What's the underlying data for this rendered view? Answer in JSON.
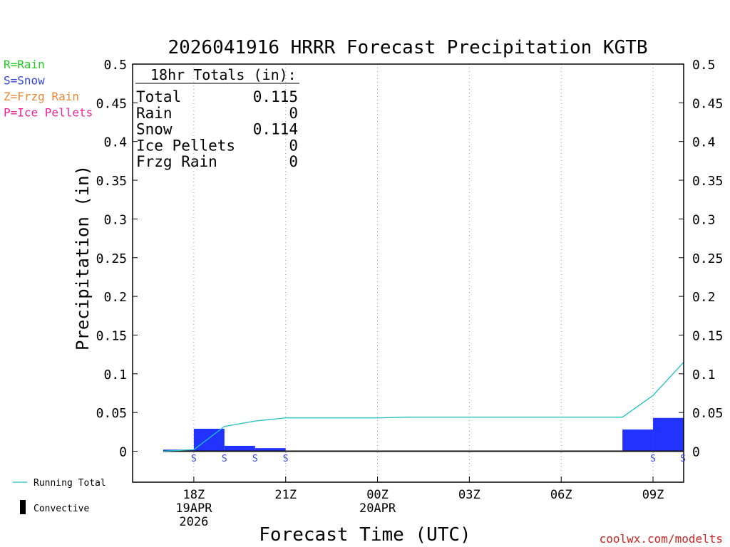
{
  "chart_data": {
    "type": "bar",
    "title": "2026041916 HRRR Forecast Precipitation KGTB",
    "xlabel": "Forecast Time (UTC)",
    "ylabel": "Precipitation (in)",
    "ylim": [
      -0.04,
      0.5
    ],
    "yticks": [
      "0",
      "0.05",
      "0.1",
      "0.15",
      "0.2",
      "0.25",
      "0.3",
      "0.35",
      "0.4",
      "0.45",
      "0.5"
    ],
    "ytick_values": [
      0,
      0.05,
      0.1,
      0.15,
      0.2,
      0.25,
      0.3,
      0.35,
      0.4,
      0.45,
      0.5
    ],
    "xlim_hours": [
      16,
      34
    ],
    "xticks": [
      {
        "hour": 18,
        "lines": [
          "18Z",
          "19APR",
          "2026"
        ]
      },
      {
        "hour": 21,
        "lines": [
          "21Z"
        ]
      },
      {
        "hour": 24,
        "lines": [
          "00Z",
          "20APR"
        ]
      },
      {
        "hour": 27,
        "lines": [
          "03Z"
        ]
      },
      {
        "hour": 30,
        "lines": [
          "06Z"
        ]
      },
      {
        "hour": 33,
        "lines": [
          "09Z"
        ]
      }
    ],
    "grid": "vertical dotted at x ticks",
    "series": [
      {
        "name": "Snow",
        "kind": "bar",
        "color": "#2233ff",
        "hours": [
          17,
          18,
          19,
          20,
          21,
          22,
          23,
          24,
          25,
          26,
          27,
          28,
          29,
          30,
          31,
          32,
          33,
          34
        ],
        "values": [
          0.0,
          0.002,
          0.029,
          0.007,
          0.004,
          0.0,
          0.0,
          0.0,
          0.0,
          0.0,
          0.0,
          0.0,
          0.0,
          0.0,
          0.0,
          0.0,
          0.028,
          0.043
        ]
      },
      {
        "name": "Running Total",
        "kind": "line",
        "color": "#20c0c0",
        "hours": [
          17,
          18,
          19,
          20,
          21,
          22,
          23,
          24,
          25,
          26,
          27,
          28,
          29,
          30,
          31,
          32,
          33,
          34
        ],
        "values": [
          0.0,
          0.002,
          0.032,
          0.039,
          0.043,
          0.043,
          0.043,
          0.043,
          0.044,
          0.044,
          0.044,
          0.044,
          0.044,
          0.044,
          0.044,
          0.044,
          0.072,
          0.115
        ]
      }
    ],
    "ptype_markers": [
      {
        "hour": 18,
        "label": "S"
      },
      {
        "hour": 19,
        "label": "S"
      },
      {
        "hour": 20,
        "label": "S"
      },
      {
        "hour": 21,
        "label": "S"
      },
      {
        "hour": 33,
        "label": "S"
      },
      {
        "hour": 34,
        "label": "S"
      }
    ],
    "totals_box": {
      "header": "18hr Totals (in):",
      "rows": [
        {
          "label": "Total",
          "value": "0.115"
        },
        {
          "label": "Rain",
          "value": "0"
        },
        {
          "label": "Snow",
          "value": "0.114"
        },
        {
          "label": "Ice Pellets",
          "value": "0"
        },
        {
          "label": "Frzg Rain",
          "value": "0"
        }
      ]
    },
    "ptype_legend": [
      {
        "text": "R=Rain",
        "color": "#22cc22"
      },
      {
        "text": "S=Snow",
        "color": "#3344dd"
      },
      {
        "text": "Z=Frzg Rain",
        "color": "#ee8833"
      },
      {
        "text": "P=Ice Pellets",
        "color": "#ee2299"
      }
    ],
    "legend": [
      {
        "text": "Running Total",
        "symbol": "line",
        "color": "#20c0c0"
      },
      {
        "text": "Convective",
        "symbol": "bar",
        "color": "#000000"
      }
    ],
    "credit": "coolwx.com/modelts"
  }
}
